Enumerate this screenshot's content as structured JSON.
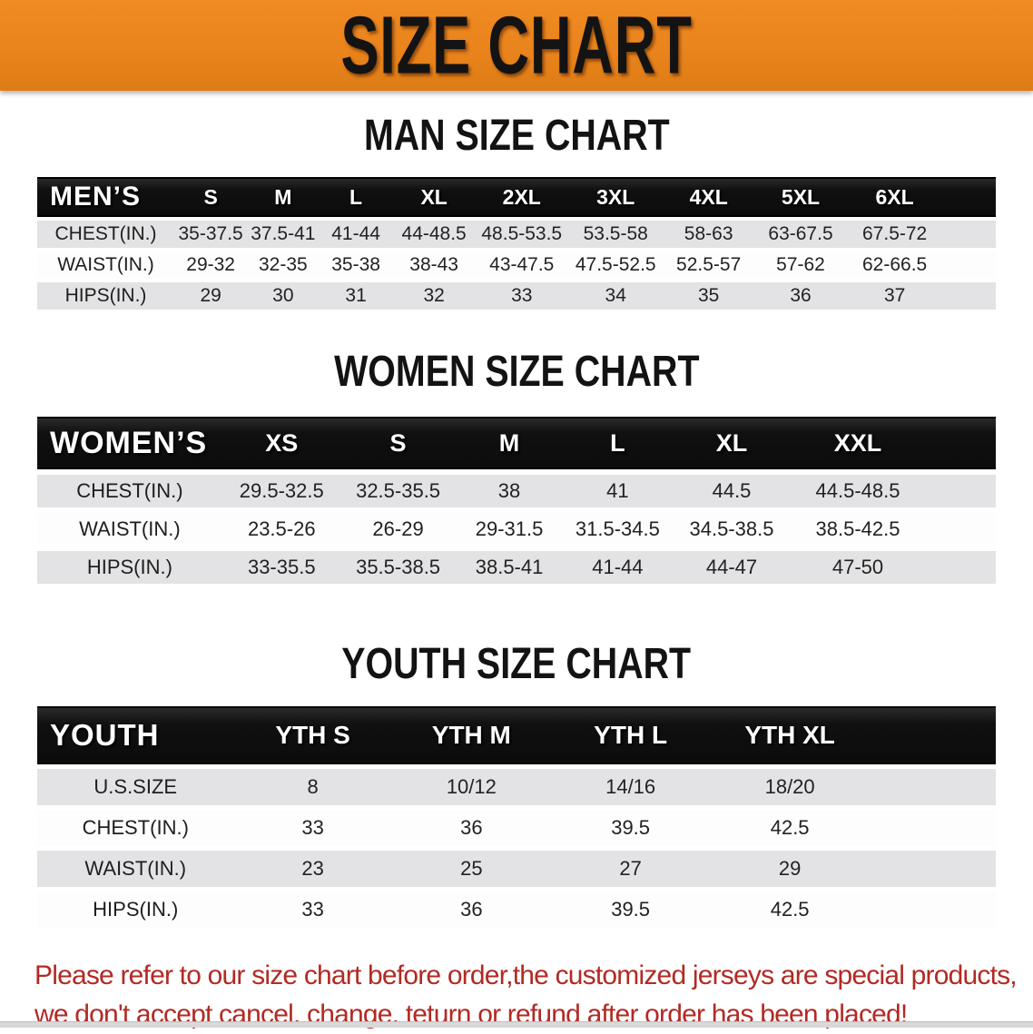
{
  "banner": {
    "title": "SIZE CHART"
  },
  "colors": {
    "banner_bg": "#E9831B",
    "header_band": "#131313",
    "row_shade": "#E3E3E5",
    "disclaimer_text": "#B22A24"
  },
  "sections": [
    {
      "title": "MAN SIZE CHART",
      "header_label": "MEN’S",
      "columns": [
        "S",
        "M",
        "L",
        "XL",
        "2XL",
        "3XL",
        "4XL",
        "5XL",
        "6XL"
      ],
      "rows": [
        {
          "label": "CHEST(IN.)",
          "values": [
            "35-37.5",
            "37.5-41",
            "41-44",
            "44-48.5",
            "48.5-53.5",
            "53.5-58",
            "58-63",
            "63-67.5",
            "67.5-72"
          ]
        },
        {
          "label": "WAIST(IN.)",
          "values": [
            "29-32",
            "32-35",
            "35-38",
            "38-43",
            "43-47.5",
            "47.5-52.5",
            "52.5-57",
            "57-62",
            "62-66.5"
          ]
        },
        {
          "label": "HIPS(IN.)",
          "values": [
            "29",
            "30",
            "31",
            "32",
            "33",
            "34",
            "35",
            "36",
            "37"
          ]
        }
      ]
    },
    {
      "title": "WOMEN SIZE CHART",
      "header_label": "WOMEN’S",
      "columns": [
        "XS",
        "S",
        "M",
        "L",
        "XL",
        "XXL"
      ],
      "rows": [
        {
          "label": "CHEST(IN.)",
          "values": [
            "29.5-32.5",
            "32.5-35.5",
            "38",
            "41",
            "44.5",
            "44.5-48.5"
          ]
        },
        {
          "label": "WAIST(IN.)",
          "values": [
            "23.5-26",
            "26-29",
            "29-31.5",
            "31.5-34.5",
            "34.5-38.5",
            "38.5-42.5"
          ]
        },
        {
          "label": "HIPS(IN.)",
          "values": [
            "33-35.5",
            "35.5-38.5",
            "38.5-41",
            "41-44",
            "44-47",
            "47-50"
          ]
        }
      ]
    },
    {
      "title": "YOUTH SIZE CHART",
      "header_label": "YOUTH",
      "columns": [
        "YTH S",
        "YTH M",
        "YTH L",
        "YTH XL"
      ],
      "rows": [
        {
          "label": "U.S.SIZE",
          "values": [
            "8",
            "10/12",
            "14/16",
            "18/20"
          ]
        },
        {
          "label": "CHEST(IN.)",
          "values": [
            "33",
            "36",
            "39.5",
            "42.5"
          ]
        },
        {
          "label": "WAIST(IN.)",
          "values": [
            "23",
            "25",
            "27",
            "29"
          ]
        },
        {
          "label": "HIPS(IN.)",
          "values": [
            "33",
            "36",
            "39.5",
            "42.5"
          ]
        }
      ]
    }
  ],
  "disclaimer": {
    "line1": "Please refer to our size chart before order,the customized jerseys are special products,",
    "line2": "we don't accept cancel, change, teturn or refund after order has been placed!"
  }
}
